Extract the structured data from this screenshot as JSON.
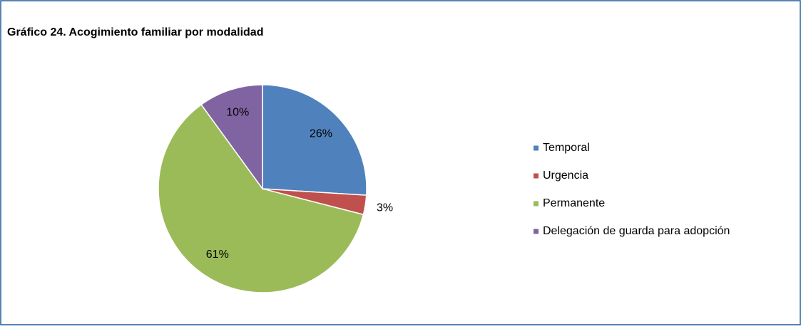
{
  "chart_data": {
    "type": "pie",
    "title": "Gráfico 24. Acogimiento familiar por modalidad",
    "categories": [
      "Temporal",
      "Urgencia",
      "Permanente",
      "Delegación de guarda para adopción"
    ],
    "values": [
      26,
      3,
      61,
      10
    ],
    "value_labels": [
      "26%",
      "3%",
      "61%",
      "10%"
    ],
    "colors": [
      "#4f81bd",
      "#c0504d",
      "#9bbb59",
      "#8064a2"
    ],
    "legend": "right"
  }
}
